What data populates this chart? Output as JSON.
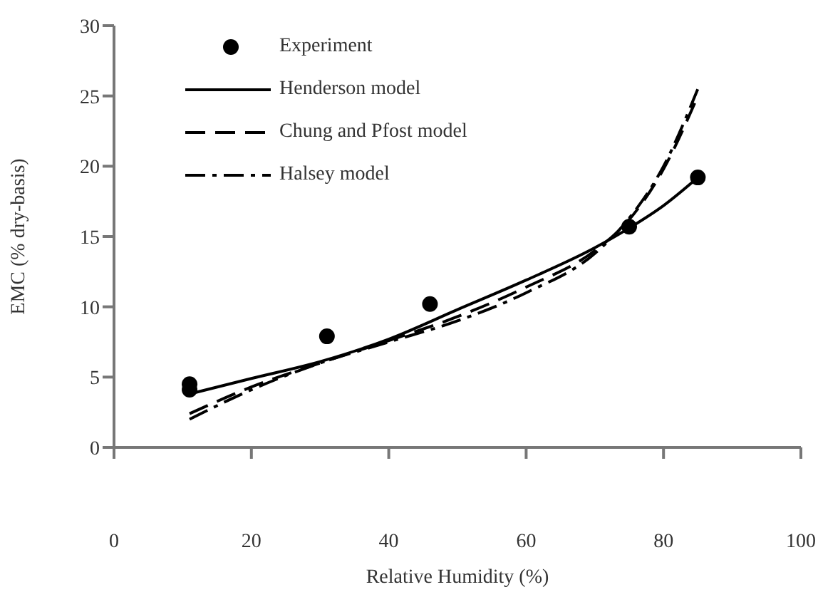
{
  "chart_data": {
    "type": "line",
    "xlabel": "Relative Humidity (%)",
    "ylabel": "EMC (% dry-basis)",
    "xlim": [
      0,
      100
    ],
    "xticks": [
      0,
      20,
      40,
      60,
      80,
      100
    ],
    "ylim": [
      0,
      30
    ],
    "yticks": [
      0,
      5,
      10,
      15,
      20,
      25,
      30
    ],
    "grid": false,
    "legend": "top left",
    "series": [
      {
        "name": "Experiment",
        "type": "scatter",
        "marker": "circle",
        "color": "#000000",
        "x": [
          11,
          11,
          31,
          46,
          75,
          85
        ],
        "values": [
          4.5,
          4.1,
          7.9,
          10.2,
          15.7,
          19.2
        ]
      },
      {
        "name": "Henderson model",
        "line_style": "solid",
        "color": "#000000",
        "x": [
          11,
          20,
          30,
          40,
          50,
          60,
          70,
          75,
          80,
          85
        ],
        "values": [
          3.8,
          4.9,
          6.1,
          7.7,
          9.8,
          11.9,
          14.2,
          15.6,
          17.2,
          19.2
        ]
      },
      {
        "name": "Chung and Pfost model",
        "line_style": "dashed",
        "color": "#000000",
        "x": [
          11,
          20,
          30,
          40,
          50,
          60,
          70,
          75,
          80,
          85
        ],
        "values": [
          2.4,
          4.3,
          6.0,
          7.6,
          9.3,
          11.4,
          14.0,
          16.2,
          19.8,
          25.0
        ]
      },
      {
        "name": "Halsey model",
        "line_style": "dotted",
        "color": "#000000",
        "x": [
          11,
          20,
          30,
          40,
          50,
          60,
          70,
          75,
          80,
          85
        ],
        "values": [
          2.0,
          4.1,
          6.0,
          7.5,
          9.0,
          11.0,
          13.8,
          16.3,
          20.0,
          25.5
        ]
      }
    ]
  }
}
